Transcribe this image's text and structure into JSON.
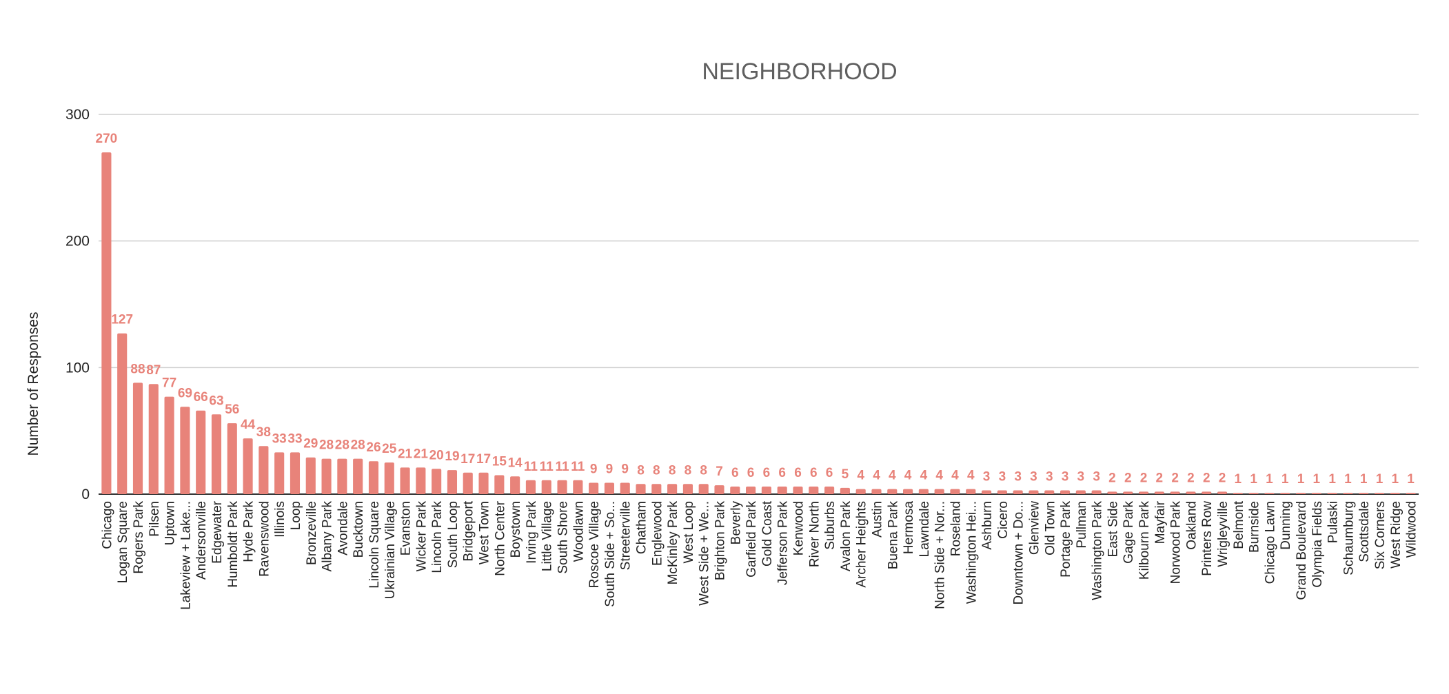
{
  "chart_data": {
    "type": "bar",
    "title": "NEIGHBORHOOD",
    "xlabel": "",
    "ylabel": "Number of Responses",
    "ylim": [
      0,
      300
    ],
    "yticks": [
      0,
      100,
      200,
      300
    ],
    "grid": true,
    "bar_color": "#e8837a",
    "label_color": "#e8837a",
    "categories": [
      "Chicago",
      "Logan Square",
      "Rogers Park",
      "Pilsen",
      "Uptown",
      "Lakeview + Lake...",
      "Andersonville",
      "Edgewater",
      "Humboldt Park",
      "Hyde Park",
      "Ravenswood",
      "Illinois",
      "Loop",
      "Bronzeville",
      "Albany Park",
      "Avondale",
      "Bucktown",
      "Lincoln Square",
      "Ukrainian Village",
      "Evanston",
      "Wicker Park",
      "Lincoln Park",
      "South Loop",
      "Bridgeport",
      "West Town",
      "North Center",
      "Boystown",
      "Irving Park",
      "Little Village",
      "South Shore",
      "Woodlawn",
      "Roscoe Village",
      "South Side + So...",
      "Streeterville",
      "Chatham",
      "Englewood",
      "McKinley Park",
      "West Loop",
      "West Side + We...",
      "Brighton Park",
      "Beverly",
      "Garfield Park",
      "Gold Coast",
      "Jefferson Park",
      "Kenwood",
      "River North",
      "Suburbs",
      "Avalon Park",
      "Archer Heights",
      "Austin",
      "Buena Park",
      "Hermosa",
      "Lawndale",
      "North Side + Nor...",
      "Roseland",
      "Washington Hei...",
      "Ashburn",
      "Cicero",
      "Downtown + Do...",
      "Glenview",
      "Old Town",
      "Portage Park",
      "Pullman",
      "Washington Park",
      "East Side",
      "Gage Park",
      "Kilbourn Park",
      "Mayfair",
      "Norwood Park",
      "Oakland",
      "Printers Row",
      "Wrigleyville",
      "Belmont",
      "Burnside",
      "Chicago Lawn",
      "Dunning",
      "Grand Boulevard",
      "Olympia Fields",
      "Pulaski",
      "Schaumburg",
      "Scottsdale",
      "Six Corners",
      "West Ridge",
      "Wildwood"
    ],
    "values": [
      270,
      127,
      88,
      87,
      77,
      69,
      66,
      63,
      56,
      44,
      38,
      33,
      33,
      29,
      28,
      28,
      28,
      26,
      25,
      21,
      21,
      20,
      19,
      17,
      17,
      15,
      14,
      11,
      11,
      11,
      11,
      9,
      9,
      9,
      8,
      8,
      8,
      8,
      8,
      7,
      6,
      6,
      6,
      6,
      6,
      6,
      6,
      5,
      4,
      4,
      4,
      4,
      4,
      4,
      4,
      4,
      3,
      3,
      3,
      3,
      3,
      3,
      3,
      3,
      2,
      2,
      2,
      2,
      2,
      2,
      2,
      2,
      1,
      1,
      1,
      1,
      1,
      1,
      1,
      1,
      1,
      1,
      1,
      1
    ]
  }
}
